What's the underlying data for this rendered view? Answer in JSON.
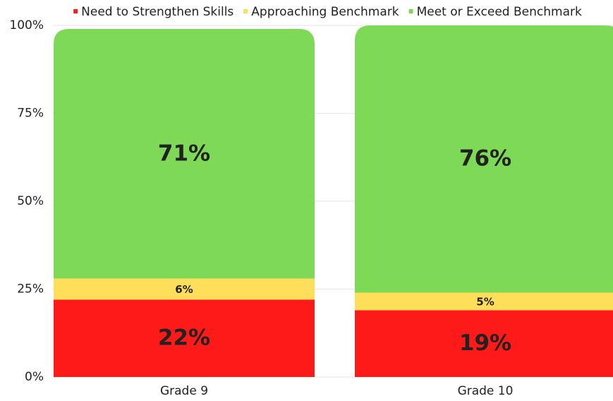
{
  "chart_data": {
    "type": "stacked_bar",
    "categories": [
      "Grade 9",
      "Grade 10"
    ],
    "series": [
      {
        "name": "Need to Strengthen Skills",
        "color": "#ff1a1a",
        "values": [
          22,
          19
        ],
        "value_labels": [
          "22%",
          "19%"
        ]
      },
      {
        "name": "Approaching Benchmark",
        "color": "#ffde59",
        "values": [
          6,
          5
        ],
        "value_labels": [
          "6%",
          "5%"
        ]
      },
      {
        "name": "Meet or Exceed Benchmark",
        "color": "#7ed957",
        "values": [
          71,
          76
        ],
        "value_labels": [
          "71%",
          "76%"
        ]
      }
    ],
    "ylim": [
      0,
      100
    ],
    "yticks": [
      {
        "value": 0,
        "label": "0%"
      },
      {
        "value": 25,
        "label": "25%"
      },
      {
        "value": 50,
        "label": "50%"
      },
      {
        "value": 75,
        "label": "75%"
      },
      {
        "value": 100,
        "label": "100%"
      }
    ],
    "grid": true,
    "legend": "top"
  }
}
